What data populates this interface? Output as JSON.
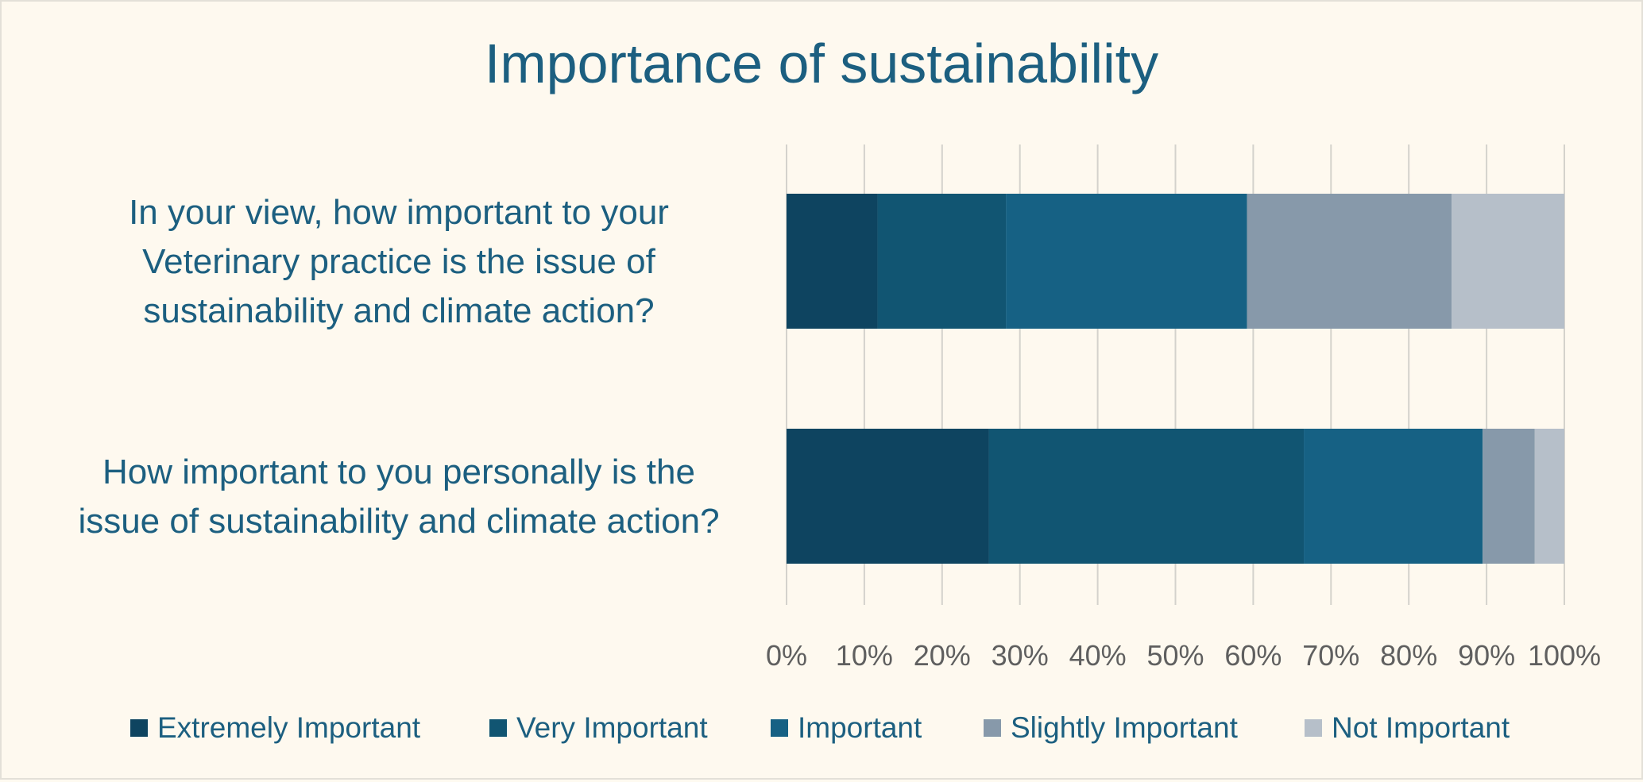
{
  "chart_data": {
    "type": "bar",
    "orientation": "horizontal",
    "stacked": "percent",
    "title": "Importance of sustainability",
    "categories": [
      "In your view, how important to your Veterinary practice is the issue of sustainability and climate action?",
      "How important to you personally is the issue of sustainability and climate action?"
    ],
    "category_lines": [
      [
        "In your view, how important to your",
        "Veterinary practice is the issue of",
        "sustainability and climate action?"
      ],
      [
        "How important to you personally is the",
        "issue of sustainability and climate action?"
      ]
    ],
    "series": [
      {
        "name": "Extremely Important",
        "color": "#0e4460",
        "values": [
          11.7,
          26.0
        ]
      },
      {
        "name": "Very Important",
        "color": "#115572",
        "values": [
          16.5,
          40.5
        ]
      },
      {
        "name": "Important",
        "color": "#166184",
        "values": [
          31.0,
          23.0
        ]
      },
      {
        "name": "Slightly Important",
        "color": "#8799aa",
        "values": [
          26.3,
          6.7
        ]
      },
      {
        "name": "Not Important",
        "color": "#b6bfc9",
        "values": [
          14.5,
          3.8
        ]
      }
    ],
    "xlim": [
      0,
      100
    ],
    "xticks": [
      "0%",
      "10%",
      "20%",
      "30%",
      "40%",
      "50%",
      "60%",
      "70%",
      "80%",
      "90%",
      "100%"
    ],
    "xlabel": "",
    "ylabel": "",
    "grid": true,
    "legend_position": "bottom"
  }
}
